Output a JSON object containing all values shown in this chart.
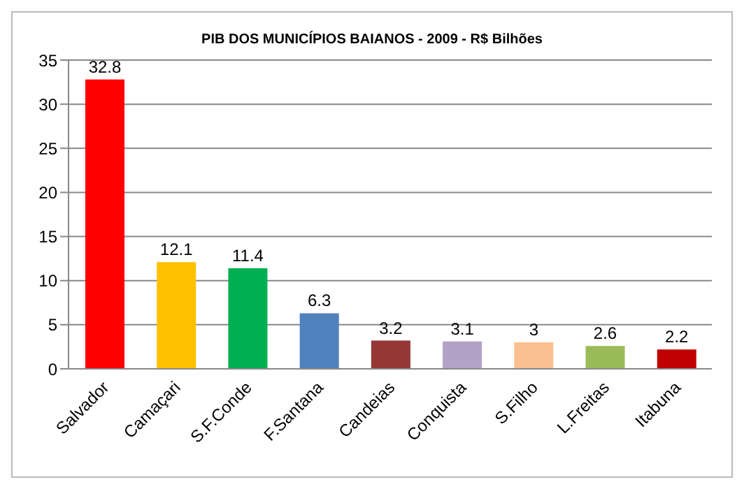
{
  "chart_data": {
    "type": "bar",
    "title": "PIB DOS MUNICÍPIOS BAIANOS - 2009 - R$ Bilhões",
    "categories": [
      "Salvador",
      "Camaçari",
      "S.F.Conde",
      "F.Santana",
      "Candeias",
      "Conquista",
      "S.Filho",
      "L.Freitas",
      "Itabuna"
    ],
    "values": [
      32.8,
      12.1,
      11.4,
      6.3,
      3.2,
      3.1,
      3,
      2.6,
      2.2
    ],
    "colors": [
      "#ff0000",
      "#ffc000",
      "#00b050",
      "#4f81bd",
      "#953735",
      "#b3a2c7",
      "#fac090",
      "#9bbb59",
      "#c00000"
    ],
    "ylim": [
      0,
      35
    ],
    "yticks": [
      0,
      5,
      10,
      15,
      20,
      25,
      30,
      35
    ],
    "grid": "y",
    "data_labels": true
  }
}
